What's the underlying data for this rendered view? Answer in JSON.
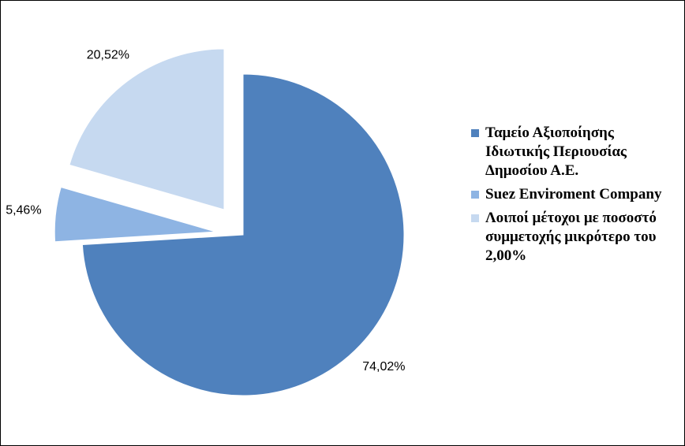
{
  "chart_data": {
    "type": "pie",
    "categories": [
      "Ταμείο Αξιοποίησης Ιδιωτικής Περιουσίας Δημοσίου Α.Ε.",
      "Suez Enviroment Company",
      "Λοιποί μέτοχοι με ποσοστό συμμετοχής μικρότερο του 2,00%"
    ],
    "values": [
      74.02,
      5.46,
      20.52
    ],
    "value_labels": [
      "74,02%",
      "5,46%",
      "20,52%"
    ],
    "colors": [
      "#4f81bd",
      "#8eb4e3",
      "#c6d9f0"
    ],
    "legend": "right"
  }
}
